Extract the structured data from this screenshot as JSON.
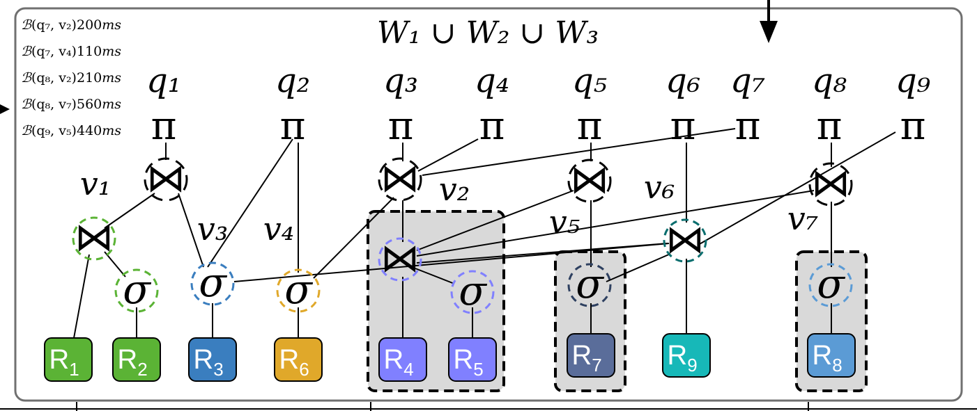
{
  "title": "W₁ ∪ W₂ ∪ W₃",
  "benefits": [
    {
      "fn": "ℬ",
      "args": "(q₇, v₂)",
      "value": "200",
      "unit": "ms"
    },
    {
      "fn": "ℬ",
      "args": "(q₇, v₄)",
      "value": "110",
      "unit": "ms"
    },
    {
      "fn": "ℬ",
      "args": "(q₈, v₂)",
      "value": "210",
      "unit": "ms"
    },
    {
      "fn": "ℬ",
      "args": "(q₈, v₇)",
      "value": "560",
      "unit": "ms"
    },
    {
      "fn": "ℬ",
      "args": "(q₉, v₅)",
      "value": "440",
      "unit": "ms"
    }
  ],
  "queries": [
    "q₁",
    "q₂",
    "q₃",
    "q₄",
    "q₅",
    "q₆",
    "q₇",
    "q₈",
    "q₉"
  ],
  "projection_symbol": "π",
  "selection_symbol": "σ",
  "join_symbol": "⋈",
  "views": [
    "v₁",
    "v₂",
    "v₃",
    "v₄",
    "v₅",
    "v₆",
    "v₇"
  ],
  "relations": [
    {
      "letter": "R",
      "sub": "1",
      "color": "#5bb335"
    },
    {
      "letter": "R",
      "sub": "2",
      "color": "#5bb335"
    },
    {
      "letter": "R",
      "sub": "3",
      "color": "#3a7ebf"
    },
    {
      "letter": "R",
      "sub": "6",
      "color": "#e0a82a"
    },
    {
      "letter": "R",
      "sub": "4",
      "color": "#8080ff"
    },
    {
      "letter": "R",
      "sub": "5",
      "color": "#8080ff"
    },
    {
      "letter": "R",
      "sub": "7",
      "color": "#5a6d9a"
    },
    {
      "letter": "R",
      "sub": "9",
      "color": "#17b8b8"
    },
    {
      "letter": "R",
      "sub": "8",
      "color": "#5b9bd5"
    }
  ],
  "colors": {
    "v1": "#5bb335",
    "v3": "#3a7ebf",
    "v4": "#e0a82a",
    "v2": "#8080ff",
    "v5": "#2e4060",
    "v6": "#0a6e6e",
    "v7": "#5b9bd5",
    "materialized_fill": "#d9d9d9",
    "frame": "#707070"
  }
}
